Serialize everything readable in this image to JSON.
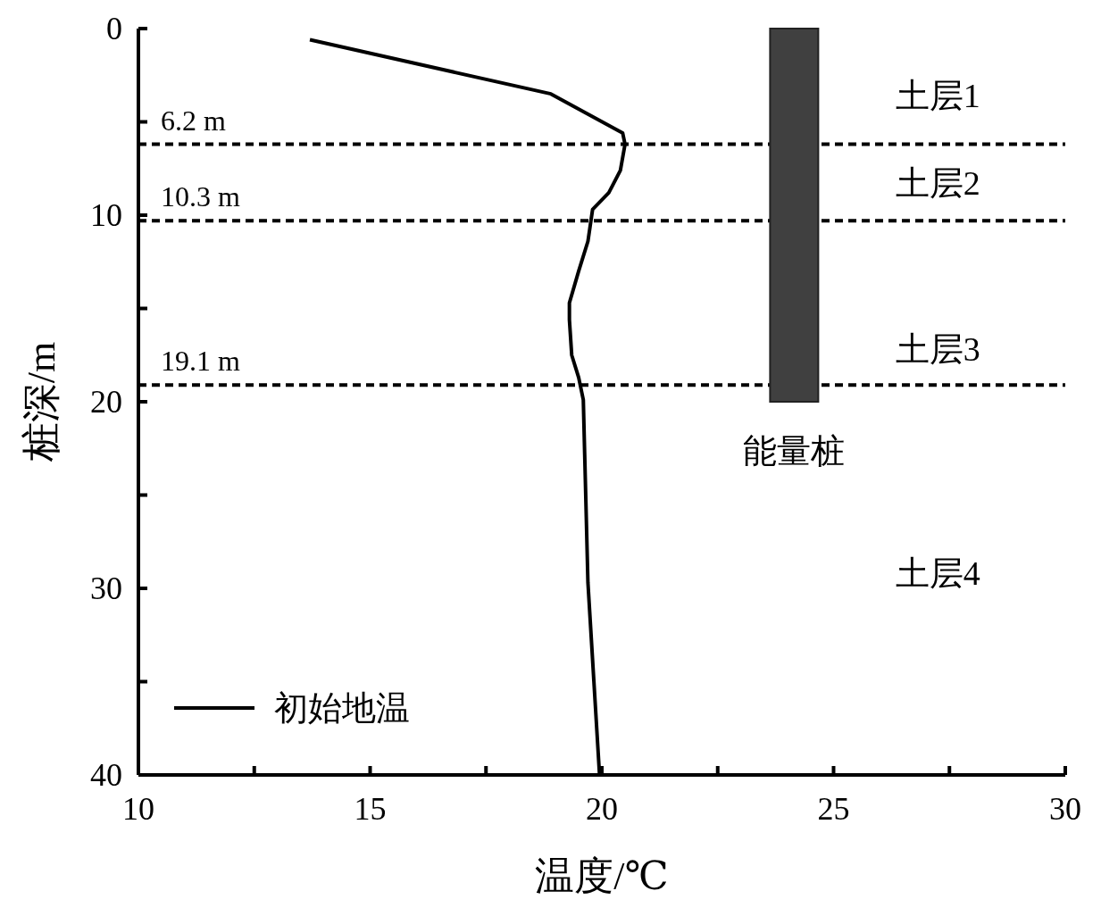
{
  "chart_data": {
    "type": "line",
    "xlabel": "温度/℃",
    "ylabel": "桩深/m",
    "xlim": [
      10,
      30
    ],
    "ylim": [
      40,
      0
    ],
    "xticks": [
      10,
      {
        "value": 12.5,
        "label": null
      },
      15,
      {
        "value": 17.5,
        "label": null
      },
      20,
      {
        "value": 22.5,
        "label": null
      },
      25,
      {
        "value": 27.5,
        "label": null
      },
      30
    ],
    "yticks": [
      0,
      {
        "value": 5,
        "label": null
      },
      10,
      {
        "value": 15,
        "label": null
      },
      20,
      {
        "value": 25,
        "label": null
      },
      30,
      {
        "value": 35,
        "label": null
      },
      40
    ],
    "series": [
      {
        "name": "初始地温",
        "color": "#000000",
        "x": [
          13.7,
          18.9,
          20.45,
          20.5,
          20.4,
          20.15,
          19.8,
          19.7,
          19.5,
          19.3,
          19.3,
          19.35,
          19.5,
          19.6,
          19.7,
          19.95
        ],
        "values": [
          0.6,
          3.5,
          5.6,
          6.2,
          7.6,
          8.8,
          9.7,
          11.4,
          13.0,
          14.7,
          15.6,
          17.5,
          18.7,
          19.9,
          29.7,
          40
        ]
      },
      {
        "type": "bar",
        "name": "能量桩",
        "color": "#404040",
        "x": [
          24.15
        ],
        "values": [
          20
        ]
      }
    ],
    "ref_lines": [
      {
        "axis": "y",
        "value": 6.2,
        "label": "6.2 m",
        "color": "#000000",
        "line_style": "dashed"
      },
      {
        "axis": "y",
        "value": 10.3,
        "label": "10.3 m",
        "color": "#000000",
        "line_style": "dashed"
      },
      {
        "axis": "y",
        "value": 19.1,
        "label": "19.1 m",
        "color": "#000000",
        "line_style": "dashed"
      }
    ],
    "annotations": [
      "土层1",
      "土层2",
      "土层3",
      "土层4"
    ],
    "legend": "bottom left",
    "grid": false,
    "line_style": "solid",
    "marker": "none"
  }
}
